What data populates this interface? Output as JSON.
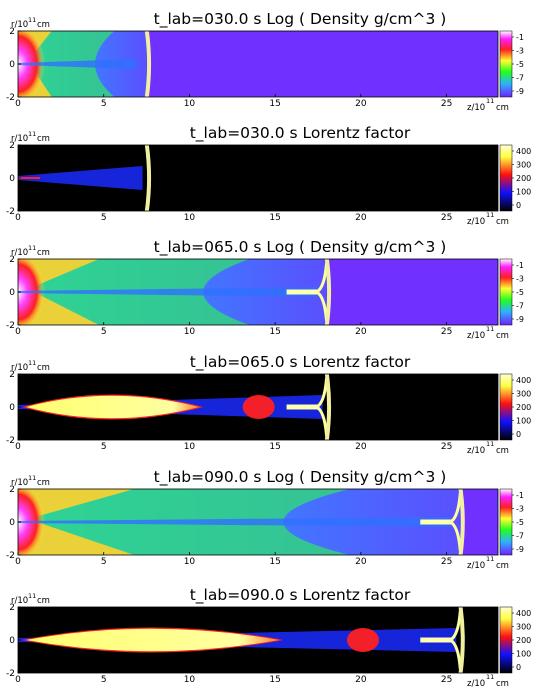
{
  "chart_data": [
    {
      "type": "heatmap",
      "title": "t_lab=030.0 s Log ( Density g/cm^3 )",
      "quantity": "density",
      "t_lab": 30,
      "front_z": 7.5,
      "xlim": [
        0,
        28
      ],
      "ylim": [
        -2,
        2
      ],
      "xticks": [
        "0",
        "5",
        "10",
        "15",
        "20",
        "25"
      ],
      "yticks": [
        "-2",
        "0",
        "2"
      ],
      "colorbar_ticks": [
        "-1",
        "-3",
        "-5",
        "-7",
        "-9"
      ],
      "ylabel": "r/10",
      "ylabel_exp": "11",
      "ylabel_unit": "cm",
      "xlabel": "z/10",
      "xlabel_exp": "11",
      "xlabel_unit": "cm"
    },
    {
      "type": "heatmap",
      "title": "t_lab=030.0 s Lorentz factor",
      "quantity": "lorentz",
      "t_lab": 30,
      "front_z": 7.5,
      "xlim": [
        0,
        28
      ],
      "ylim": [
        -2,
        2
      ],
      "xticks": [
        "0",
        "5",
        "10",
        "15",
        "20",
        "25"
      ],
      "yticks": [
        "-2",
        "0",
        "2"
      ],
      "colorbar_ticks": [
        "400",
        "300",
        "200",
        "100",
        "0"
      ],
      "ylabel": "r/10",
      "ylabel_exp": "11",
      "ylabel_unit": "cm",
      "xlabel": "z/10",
      "xlabel_exp": "11",
      "xlabel_unit": "cm"
    },
    {
      "type": "heatmap",
      "title": "t_lab=065.0 s Log ( Density g/cm^3 )",
      "quantity": "density",
      "t_lab": 65,
      "front_z": 18.0,
      "xlim": [
        0,
        28
      ],
      "ylim": [
        -2,
        2
      ],
      "xticks": [
        "0",
        "5",
        "10",
        "15",
        "20",
        "25"
      ],
      "yticks": [
        "-2",
        "0",
        "2"
      ],
      "colorbar_ticks": [
        "-1",
        "-3",
        "-5",
        "-7",
        "-9"
      ],
      "ylabel": "r/10",
      "ylabel_exp": "11",
      "ylabel_unit": "cm",
      "xlabel": "z/10",
      "xlabel_exp": "11",
      "xlabel_unit": "cm"
    },
    {
      "type": "heatmap",
      "title": "t_lab=065.0 s Lorentz factor",
      "quantity": "lorentz",
      "t_lab": 65,
      "front_z": 18.0,
      "xlim": [
        0,
        28
      ],
      "ylim": [
        -2,
        2
      ],
      "xticks": [
        "0",
        "5",
        "10",
        "15",
        "20",
        "25"
      ],
      "yticks": [
        "-2",
        "0",
        "2"
      ],
      "colorbar_ticks": [
        "400",
        "300",
        "200",
        "100",
        "0"
      ],
      "ylabel": "r/10",
      "ylabel_exp": "11",
      "ylabel_unit": "cm",
      "xlabel": "z/10",
      "xlabel_exp": "11",
      "xlabel_unit": "cm"
    },
    {
      "type": "heatmap",
      "title": "t_lab=090.0 s Log ( Density g/cm^3 )",
      "quantity": "density",
      "t_lab": 90,
      "front_z": 25.8,
      "xlim": [
        0,
        28
      ],
      "ylim": [
        -2,
        2
      ],
      "xticks": [
        "0",
        "5",
        "10",
        "15",
        "20",
        "25"
      ],
      "yticks": [
        "-2",
        "0",
        "2"
      ],
      "colorbar_ticks": [
        "-1",
        "-3",
        "-5",
        "-7",
        "-9"
      ],
      "ylabel": "r/10",
      "ylabel_exp": "11",
      "ylabel_unit": "cm",
      "xlabel": "z/10",
      "xlabel_exp": "11",
      "xlabel_unit": "cm"
    },
    {
      "type": "heatmap",
      "title": "t_lab=090.0 s Lorentz factor",
      "quantity": "lorentz",
      "t_lab": 90,
      "front_z": 25.8,
      "xlim": [
        0,
        28
      ],
      "ylim": [
        -2,
        2
      ],
      "xticks": [
        "0",
        "5",
        "10",
        "15",
        "20",
        "25"
      ],
      "yticks": [
        "-2",
        "0",
        "2"
      ],
      "colorbar_ticks": [
        "400",
        "300",
        "200",
        "100",
        "0"
      ],
      "ylabel": "r/10",
      "ylabel_exp": "11",
      "ylabel_unit": "cm",
      "xlabel": "z/10",
      "xlabel_exp": "11",
      "xlabel_unit": "cm"
    }
  ],
  "colors": {
    "density_scale": [
      "#ffffff",
      "#ff10ff",
      "#ff2020",
      "#ffff40",
      "#20ff20",
      "#40a0ff",
      "#7020ff"
    ],
    "lorentz_scale": [
      "#000000",
      "#1010ff",
      "#ff1010",
      "#ffff60",
      "#ffffc0"
    ],
    "ambient_density": "#7030ff",
    "ambient_lorentz": "#000000"
  }
}
